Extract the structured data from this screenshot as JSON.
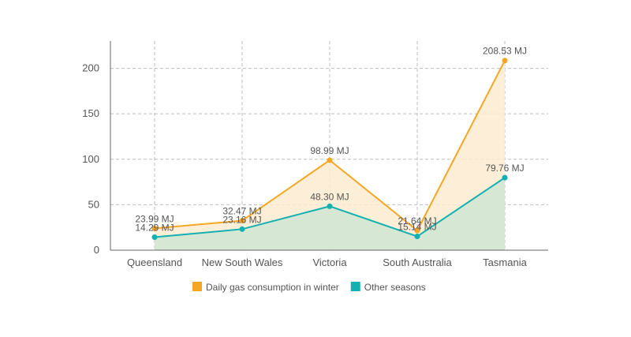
{
  "chart_data": {
    "type": "area",
    "categories": [
      "Queensland",
      "New South Wales",
      "Victoria",
      "South Australia",
      "Tasmania"
    ],
    "series": [
      {
        "name": "Daily gas consumption in winter",
        "values": [
          23.99,
          32.47,
          98.99,
          21.64,
          208.53
        ],
        "labels": [
          "23.99 MJ",
          "32.47 MJ",
          "98.99 MJ",
          "21.64 MJ",
          "208.53 MJ"
        ],
        "color": "#F5A623",
        "fill": "#FDEBD0"
      },
      {
        "name": "Other seasons",
        "values": [
          14.29,
          23.16,
          48.3,
          15.14,
          79.76
        ],
        "labels": [
          "14.29 MJ",
          "23.16 MJ",
          "48.30 MJ",
          "15.14 MJ",
          "79.76 MJ"
        ],
        "color": "#12B0B0",
        "fill": "#CFE5D2"
      }
    ],
    "ylim": [
      0,
      230
    ],
    "yticks": [
      "0",
      "50",
      "100",
      "150",
      "200"
    ],
    "grid": true,
    "legend_position": "bottom"
  }
}
